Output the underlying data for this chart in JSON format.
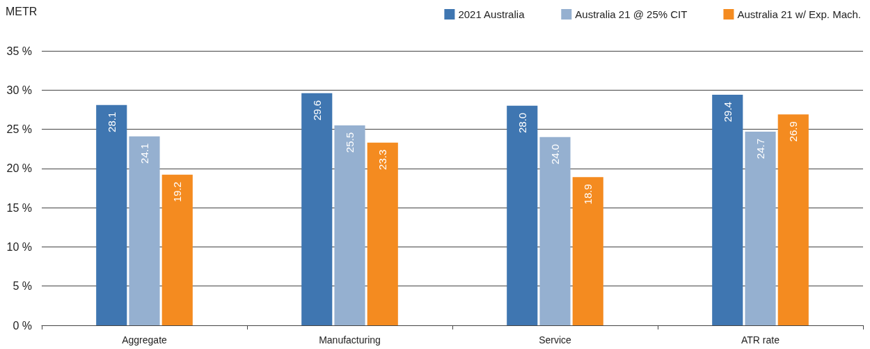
{
  "chart_data": {
    "type": "bar",
    "ylabel": "METR",
    "categories": [
      "Aggregate",
      "Manufacturing",
      "Service",
      "ATR rate"
    ],
    "series": [
      {
        "name": "2021 Australia",
        "color": "#3f76b1",
        "values": [
          28.1,
          29.6,
          28.0,
          29.4
        ],
        "value_labels": [
          "28.1",
          "29.6",
          "28.0",
          "29.4"
        ]
      },
      {
        "name": "Australia 21 @ 25% CIT",
        "color": "#95b0d0",
        "values": [
          24.1,
          25.5,
          24.0,
          24.7
        ],
        "value_labels": [
          "24.1",
          "25.5",
          "24.0",
          "24.7"
        ]
      },
      {
        "name": "Australia 21 w/ Exp. Mach.",
        "color": "#f48b20",
        "values": [
          19.2,
          23.3,
          18.9,
          26.9
        ],
        "value_labels": [
          "19.2",
          "23.3",
          "18.9",
          "26.9"
        ]
      }
    ],
    "ylim": [
      0,
      35
    ],
    "yticks": [
      {
        "value": 0,
        "label": "0 %"
      },
      {
        "value": 5,
        "label": "5 %"
      },
      {
        "value": 10,
        "label": "10 %"
      },
      {
        "value": 15,
        "label": "15 %"
      },
      {
        "value": 20,
        "label": "20 %"
      },
      {
        "value": 25,
        "label": "25 %"
      },
      {
        "value": 30,
        "label": "30 %"
      },
      {
        "value": 35,
        "label": "35 %"
      }
    ],
    "grid": "y",
    "legend": "top right"
  }
}
